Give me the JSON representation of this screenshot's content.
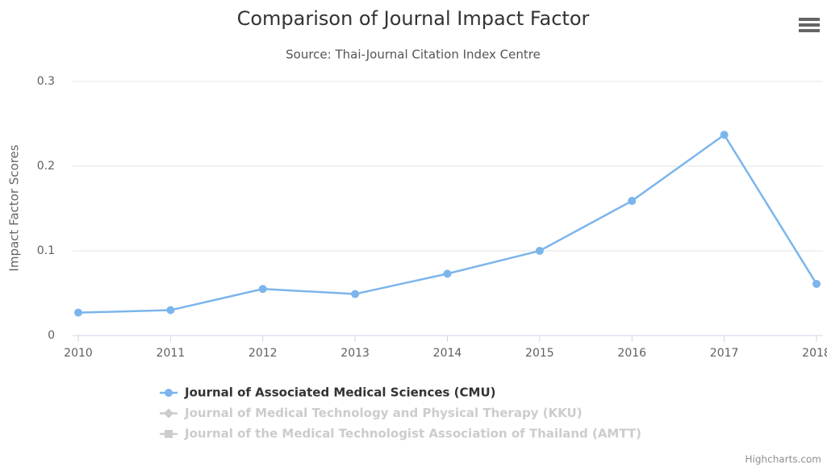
{
  "chart_data": {
    "type": "line",
    "title": "Comparison of Journal Impact Factor",
    "subtitle": "Source: Thai-Journal Citation Index Centre",
    "y_axis_label": "Impact Factor Scores",
    "credits": "Highcharts.com",
    "categories": [
      "2010",
      "2011",
      "2012",
      "2013",
      "2014",
      "2015",
      "2016",
      "2017",
      "2018"
    ],
    "ylim": [
      0,
      0.3
    ],
    "yticks": [
      0,
      0.1,
      0.2,
      0.3
    ],
    "grid": true,
    "legend": "bottom",
    "series": [
      {
        "name": "Journal of Associated Medical Sciences (CMU)",
        "color": "#7cb5ec",
        "marker": "circle",
        "visible": true,
        "values": [
          0.027,
          0.03,
          0.055,
          0.049,
          0.073,
          0.1,
          0.159,
          0.237,
          0.061
        ]
      },
      {
        "name": "Journal of Medical Technology and Physical Therapy (KKU)",
        "color": "#cccccc",
        "marker": "diamond",
        "visible": false,
        "values": [
          null,
          null,
          null,
          null,
          null,
          null,
          null,
          null,
          null
        ]
      },
      {
        "name": "Journal of the Medical Technologist Association of Thailand (AMTT)",
        "color": "#cccccc",
        "marker": "square",
        "visible": false,
        "values": [
          null,
          null,
          null,
          null,
          null,
          null,
          null,
          null,
          null
        ]
      }
    ]
  }
}
